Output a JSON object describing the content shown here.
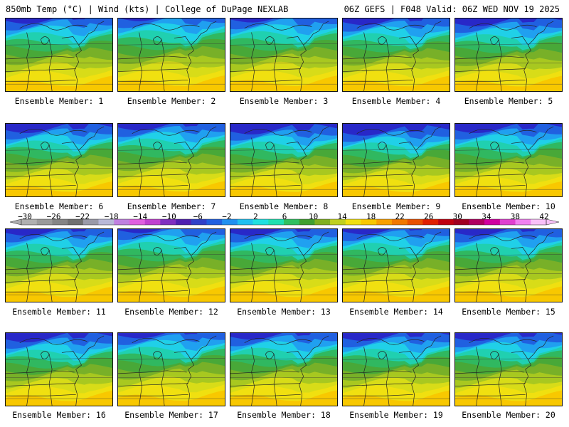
{
  "header": {
    "left": "850mb Temp (°C) | Wind (kts) | College of DuPage NEXLAB",
    "right": "06Z GEFS | F048 Valid: 06Z WED NOV 19 2025"
  },
  "panels": [
    {
      "label": "Ensemble Member: 1",
      "warmth": 0.55
    },
    {
      "label": "Ensemble Member: 2",
      "warmth": 0.65
    },
    {
      "label": "Ensemble Member: 3",
      "warmth": 0.6
    },
    {
      "label": "Ensemble Member: 4",
      "warmth": 0.5
    },
    {
      "label": "Ensemble Member: 5",
      "warmth": 0.45
    },
    {
      "label": "Ensemble Member: 6",
      "warmth": 0.4
    },
    {
      "label": "Ensemble Member: 7",
      "warmth": 0.5
    },
    {
      "label": "Ensemble Member: 8",
      "warmth": 0.35
    },
    {
      "label": "Ensemble Member: 9",
      "warmth": 0.3
    },
    {
      "label": "Ensemble Member: 10",
      "warmth": 0.4
    },
    {
      "label": "Ensemble Member: 11",
      "warmth": 0.5
    },
    {
      "label": "Ensemble Member: 12",
      "warmth": 0.6
    },
    {
      "label": "Ensemble Member: 13",
      "warmth": 0.5
    },
    {
      "label": "Ensemble Member: 14",
      "warmth": 0.55
    },
    {
      "label": "Ensemble Member: 15",
      "warmth": 0.5
    },
    {
      "label": "Ensemble Member: 16",
      "warmth": 0.4
    },
    {
      "label": "Ensemble Member: 17",
      "warmth": 0.55
    },
    {
      "label": "Ensemble Member: 18",
      "warmth": 0.5
    },
    {
      "label": "Ensemble Member: 19",
      "warmth": 0.45
    },
    {
      "label": "Ensemble Member: 20",
      "warmth": 0.45
    }
  ],
  "colorbar": {
    "labels": [
      "−30",
      "−26",
      "−22",
      "−18",
      "−14",
      "−10",
      "−6",
      "−2",
      "2",
      "6",
      "10",
      "14",
      "18",
      "22",
      "26",
      "30",
      "34",
      "38",
      "42"
    ],
    "colors": [
      "#b0b0b0",
      "#9a9a9a",
      "#858585",
      "#707070",
      "#9a9aa8",
      "#b8b8d8",
      "#c080e0",
      "#e060e0",
      "#c040d0",
      "#8030c0",
      "#5020b0",
      "#3040c8",
      "#2060e0",
      "#2090f0",
      "#20c0f0",
      "#20e0e0",
      "#20e0b0",
      "#30c060",
      "#40a030",
      "#80b020",
      "#c0d020",
      "#f0e010",
      "#f8c800",
      "#f8a000",
      "#f07800",
      "#e85000",
      "#e02000",
      "#c00010",
      "#a00020",
      "#b00060",
      "#d000a0",
      "#e040d0",
      "#f080f0",
      "#f8c0f8"
    ]
  }
}
